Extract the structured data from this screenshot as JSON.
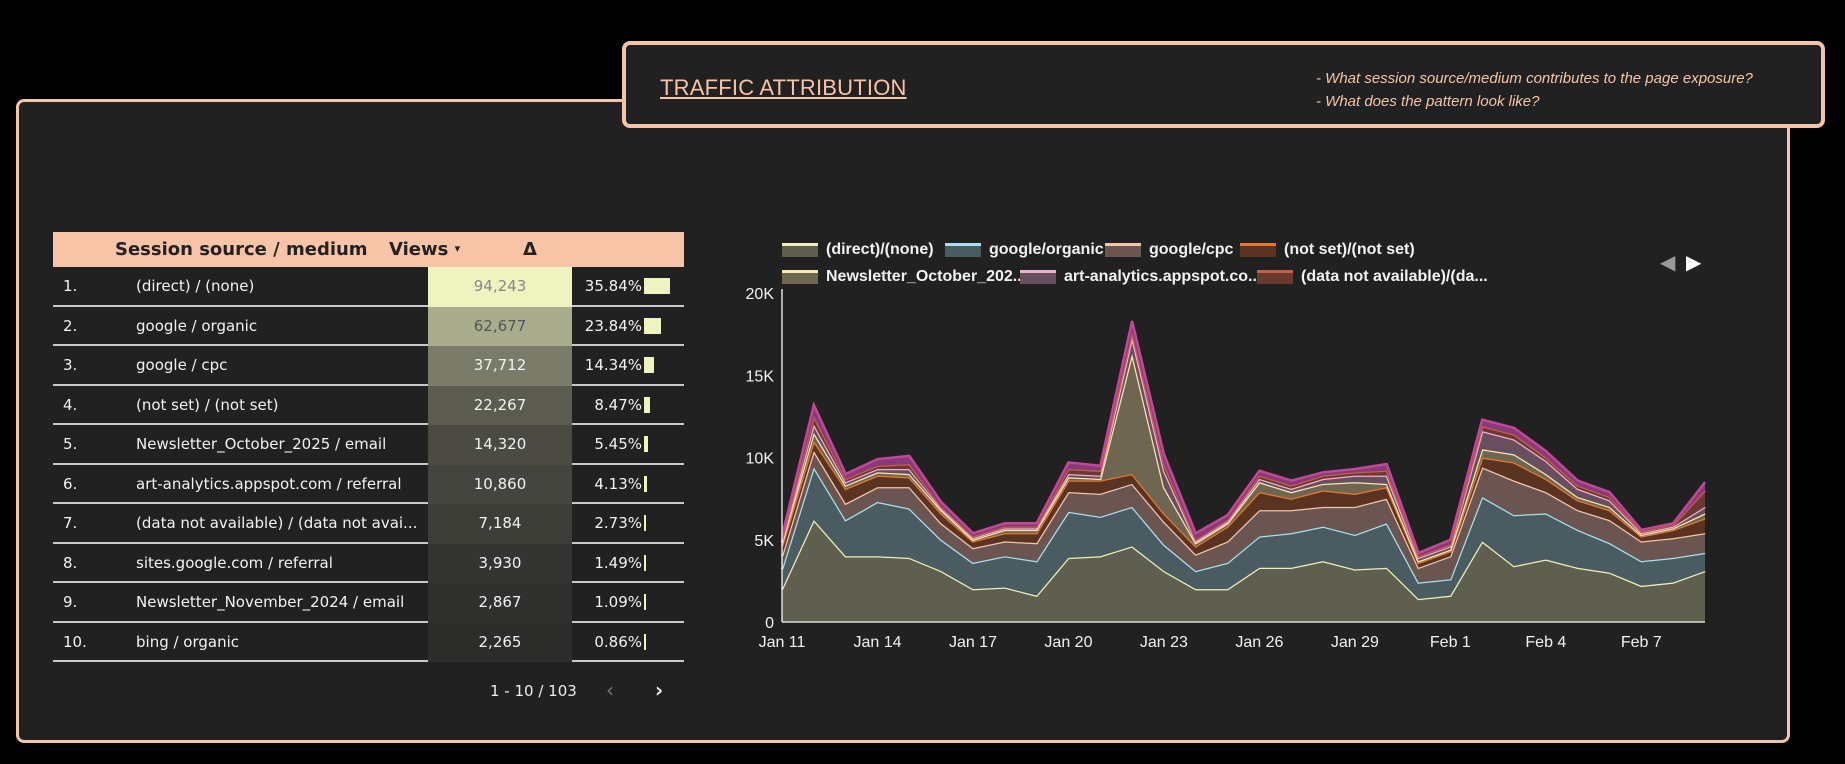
{
  "header": {
    "title": "TRAFFIC ATTRIBUTION",
    "questions": [
      "- What session source/medium contributes to the page exposure?",
      "- What does the pattern look like?"
    ]
  },
  "table": {
    "columns": {
      "source": "Session source / medium",
      "views": "Views",
      "sort_indicator": "▾",
      "delta": "Δ"
    },
    "rows": [
      {
        "index": "1.",
        "source": "(direct) / (none)",
        "views": "94,243",
        "delta": "35.84%",
        "delta_value": 35.84
      },
      {
        "index": "2.",
        "source": "google / organic",
        "views": "62,677",
        "delta": "23.84%",
        "delta_value": 23.84
      },
      {
        "index": "3.",
        "source": "google / cpc",
        "views": "37,712",
        "delta": "14.34%",
        "delta_value": 14.34
      },
      {
        "index": "4.",
        "source": "(not set) / (not set)",
        "views": "22,267",
        "delta": "8.47%",
        "delta_value": 8.47
      },
      {
        "index": "5.",
        "source": "Newsletter_October_2025 / email",
        "views": "14,320",
        "delta": "5.45%",
        "delta_value": 5.45
      },
      {
        "index": "6.",
        "source": "art-analytics.appspot.com / referral",
        "views": "10,860",
        "delta": "4.13%",
        "delta_value": 4.13
      },
      {
        "index": "7.",
        "source": "(data not available) / (data not avai...",
        "views": "7,184",
        "delta": "2.73%",
        "delta_value": 2.73
      },
      {
        "index": "8.",
        "source": "sites.google.com / referral",
        "views": "3,930",
        "delta": "1.49%",
        "delta_value": 1.49
      },
      {
        "index": "9.",
        "source": "Newsletter_November_2024 / email",
        "views": "2,867",
        "delta": "1.09%",
        "delta_value": 1.09
      },
      {
        "index": "10.",
        "source": "bing / organic",
        "views": "2,265",
        "delta": "0.86%",
        "delta_value": 0.86
      }
    ],
    "heat_colors": [
      "#eef3c0",
      "#a9ad8e",
      "#7a7b68",
      "#5b5b4f",
      "#4b4b43",
      "#45453f",
      "#3d3d38",
      "#343432",
      "#30302e",
      "#2c2c2a"
    ],
    "pagination": {
      "range": "1 - 10 / 103",
      "prev_icon": "chevron-left-icon",
      "next_icon": "chevron-right-icon"
    }
  },
  "chart_data": {
    "type": "area",
    "stacked": true,
    "x": [
      "Jan 11",
      "Jan 12",
      "Jan 13",
      "Jan 14",
      "Jan 15",
      "Jan 16",
      "Jan 17",
      "Jan 18",
      "Jan 19",
      "Jan 20",
      "Jan 21",
      "Jan 22",
      "Jan 23",
      "Jan 24",
      "Jan 25",
      "Jan 26",
      "Jan 27",
      "Jan 28",
      "Jan 29",
      "Jan 30",
      "Jan 31",
      "Feb 1",
      "Feb 2",
      "Feb 3",
      "Feb 4",
      "Feb 5",
      "Feb 6",
      "Feb 7",
      "Feb 8",
      "Feb 9"
    ],
    "xticks": [
      "Jan 11",
      "Jan 14",
      "Jan 17",
      "Jan 20",
      "Jan 23",
      "Jan 26",
      "Jan 29",
      "Feb 1",
      "Feb 4",
      "Feb 7"
    ],
    "yticks": [
      "0",
      "5K",
      "10K",
      "15K",
      "20K"
    ],
    "ylim": [
      0,
      20000
    ],
    "legend_position": "top",
    "series": [
      {
        "name": "(direct)/(none)",
        "fill": "#5f5f4f",
        "line": "#eef0b8",
        "values": [
          2000,
          6200,
          4000,
          4000,
          3900,
          3100,
          2000,
          2100,
          1600,
          3900,
          4000,
          4600,
          3100,
          2000,
          2000,
          3300,
          3300,
          3700,
          3200,
          3300,
          1400,
          1600,
          4900,
          3400,
          3800,
          3300,
          3000,
          2200,
          2400,
          3100
        ]
      },
      {
        "name": "google/organic",
        "fill": "#4a5c61",
        "line": "#a8e0ee",
        "values": [
          1200,
          3200,
          2200,
          3300,
          3000,
          1900,
          1600,
          1900,
          2100,
          2800,
          2400,
          2400,
          1600,
          1100,
          1600,
          1900,
          2100,
          2100,
          2100,
          2700,
          1000,
          1000,
          2700,
          3100,
          2800,
          2300,
          1800,
          1500,
          1500,
          1100
        ]
      },
      {
        "name": "google/cpc",
        "fill": "#6a5550",
        "line": "#f4c4b0",
        "values": [
          800,
          1000,
          1000,
          900,
          1300,
          1000,
          900,
          900,
          1100,
          1200,
          1400,
          1400,
          1400,
          1000,
          1300,
          1600,
          1400,
          1200,
          1700,
          1500,
          900,
          1400,
          1800,
          2100,
          1300,
          1200,
          1400,
          1200,
          1200,
          1200
        ]
      },
      {
        "name": "(not set)/(not set)",
        "fill": "#5a3420",
        "line": "#e87830",
        "values": [
          600,
          600,
          900,
          700,
          600,
          600,
          400,
          500,
          600,
          700,
          800,
          600,
          500,
          500,
          900,
          1100,
          700,
          1000,
          800,
          700,
          300,
          300,
          600,
          1100,
          800,
          600,
          600,
          300,
          500,
          900
        ]
      },
      {
        "name": "Newsletter_October_202...",
        "fill": "#6e6650",
        "line": "#f8e8b0",
        "values": [
          200,
          500,
          200,
          200,
          200,
          200,
          100,
          200,
          200,
          200,
          100,
          7300,
          1600,
          200,
          200,
          600,
          400,
          400,
          700,
          200,
          100,
          100,
          500,
          500,
          300,
          200,
          200,
          100,
          100,
          300
        ]
      },
      {
        "name": "art-analytics.appspot.co...",
        "fill": "#684f5e",
        "line": "#f0b0d0",
        "values": [
          100,
          500,
          200,
          200,
          300,
          100,
          100,
          100,
          100,
          200,
          200,
          1000,
          1000,
          100,
          100,
          200,
          200,
          300,
          400,
          500,
          200,
          200,
          1100,
          900,
          800,
          500,
          400,
          100,
          100,
          400
        ]
      },
      {
        "name": "(data not available)/(da...",
        "fill": "#6a3a30",
        "line": "#c86048",
        "values": [
          100,
          500,
          200,
          200,
          300,
          100,
          100,
          100,
          100,
          300,
          300,
          300,
          400,
          100,
          100,
          200,
          200,
          200,
          200,
          300,
          100,
          100,
          300,
          300,
          200,
          200,
          200,
          100,
          100,
          1000
        ]
      },
      {
        "fill": "#8a3a7a",
        "line": "#c04898",
        "values": [
          200,
          700,
          300,
          400,
          500,
          300,
          200,
          200,
          200,
          400,
          300,
          700,
          600,
          400,
          300,
          300,
          300,
          200,
          200,
          400,
          200,
          300,
          400,
          400,
          400,
          300,
          300,
          100,
          100,
          500
        ]
      }
    ],
    "legend_nav": {
      "prev_icon": "triangle-left-icon",
      "next_icon": "triangle-right-icon"
    }
  }
}
